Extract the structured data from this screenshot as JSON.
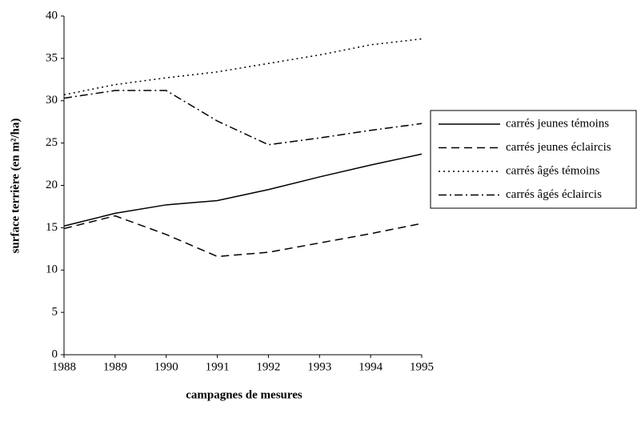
{
  "chart_data": {
    "type": "line",
    "xlabel": "campagnes de mesures",
    "ylabel": "surface terrière (en m²/ha)",
    "x": [
      1988,
      1989,
      1990,
      1991,
      1992,
      1993,
      1994,
      1995
    ],
    "xlim": [
      1988,
      1995
    ],
    "xticks": [
      1988,
      1989,
      1990,
      1991,
      1992,
      1993,
      1994,
      1995
    ],
    "ylim": [
      0,
      40
    ],
    "yticks": [
      0,
      5,
      10,
      15,
      20,
      25,
      30,
      35,
      40
    ],
    "grid": false,
    "legend": "right",
    "series": [
      {
        "name": "carrés jeunes témoins",
        "color": "#000000",
        "dash": "solid",
        "values": [
          15.2,
          16.7,
          17.7,
          18.2,
          19.5,
          21.0,
          22.4,
          23.7
        ]
      },
      {
        "name": "carrés jeunes éclaircis",
        "color": "#000000",
        "dash": "dashed",
        "values": [
          14.9,
          16.4,
          14.2,
          11.6,
          12.1,
          13.2,
          14.3,
          15.5
        ]
      },
      {
        "name": "carrés âgés témoins",
        "color": "#000000",
        "dash": "dotted",
        "values": [
          30.7,
          31.9,
          32.7,
          33.4,
          34.4,
          35.4,
          36.6,
          37.3
        ]
      },
      {
        "name": "carrés âgés éclaircis",
        "color": "#000000",
        "dash": "dashdot",
        "values": [
          30.3,
          31.2,
          31.2,
          27.6,
          24.8,
          25.6,
          26.5,
          27.3
        ]
      }
    ]
  }
}
